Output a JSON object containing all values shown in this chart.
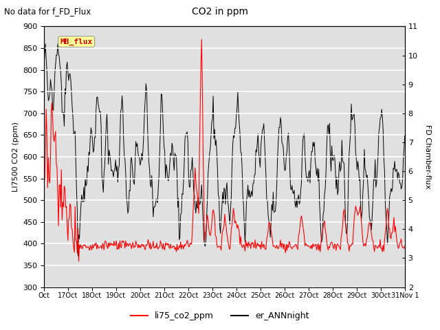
{
  "title": "CO2 in ppm",
  "subtitle": "No data for f_FD_Flux",
  "ylabel_left": "LI7500 CO2 (ppm)",
  "ylabel_right": "FD Chamber-flux",
  "ylim_left": [
    300,
    900
  ],
  "ylim_right": [
    2.0,
    11.0
  ],
  "yticks_left": [
    300,
    350,
    400,
    450,
    500,
    550,
    600,
    650,
    700,
    750,
    800,
    850,
    900
  ],
  "yticks_right": [
    2.0,
    3.0,
    4.0,
    5.0,
    6.0,
    7.0,
    8.0,
    9.0,
    10.0,
    11.0
  ],
  "xtick_labels": [
    "Oct",
    "17Oct",
    "18Oct",
    "19Oct",
    "20Oct",
    "21Oct",
    "22Oct",
    "23Oct",
    "24Oct",
    "25Oct",
    "26Oct",
    "27Oct",
    "28Oct",
    "29Oct",
    "30Oct",
    "31Nov 1"
  ],
  "legend_entries": [
    "li75_co2_ppm",
    "er_ANNnight"
  ],
  "legend_colors": [
    "red",
    "black"
  ],
  "mb_flux_label": "MB_flux",
  "mb_flux_color": "#cc0000",
  "mb_flux_bg": "#ffff99",
  "bg_color": "#e0e0e0",
  "line1_color": "red",
  "line2_color": "black",
  "grid_color": "white",
  "figsize": [
    6.4,
    4.8
  ],
  "dpi": 100
}
